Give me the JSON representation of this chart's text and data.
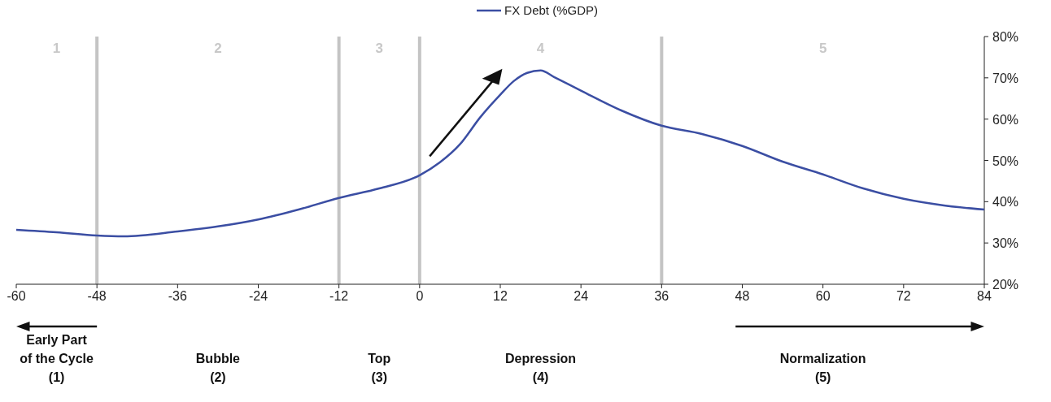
{
  "chart_data": {
    "type": "line",
    "x": [
      -60,
      -54,
      -48,
      -44,
      -36,
      -30,
      -24,
      -18,
      -12,
      -6,
      0,
      3,
      6,
      9,
      12,
      14,
      16,
      18,
      20,
      24,
      30,
      36,
      42,
      48,
      54,
      60,
      66,
      72,
      78,
      84
    ],
    "series": [
      {
        "name": "FX Debt (%GDP)",
        "color": "#3b4ea3",
        "values": [
          33.2,
          32.6,
          31.8,
          31.6,
          32.8,
          34,
          35.7,
          38.1,
          40.9,
          43.2,
          46.4,
          49.5,
          53.9,
          60.4,
          65.9,
          69.2,
          71.2,
          71.8,
          70.2,
          66.9,
          62.1,
          58.4,
          56.4,
          53.5,
          49.7,
          46.6,
          43.2,
          40.7,
          39.1,
          38.1
        ]
      }
    ],
    "xlim": [
      -60,
      84
    ],
    "xticks": [
      -60,
      -48,
      -36,
      -24,
      -12,
      0,
      12,
      24,
      36,
      48,
      60,
      72,
      84
    ],
    "ylim": [
      20,
      80
    ],
    "yticks": [
      {
        "value": 20,
        "label": "20%"
      },
      {
        "value": 30,
        "label": "30%"
      },
      {
        "value": 40,
        "label": "40%"
      },
      {
        "value": 50,
        "label": "50%"
      },
      {
        "value": 60,
        "label": "60%"
      },
      {
        "value": 70,
        "label": "70%"
      },
      {
        "value": 80,
        "label": "80%"
      }
    ],
    "ref_lines": [
      {
        "axis": "x",
        "value": -48,
        "color": "#c4c4c4"
      },
      {
        "axis": "x",
        "value": -12,
        "color": "#c4c4c4"
      },
      {
        "axis": "x",
        "value": 0,
        "color": "#c4c4c4"
      },
      {
        "axis": "x",
        "value": 36,
        "color": "#c4c4c4"
      }
    ],
    "annotations": [
      "1",
      "2",
      "3",
      "4",
      "5",
      "Early Part\nof the Cycle\n(1)",
      "Bubble\n(2)",
      "Top\n(3)",
      "Depression\n(4)",
      "Normalization\n(5)"
    ],
    "legend": "top",
    "grid": false,
    "line_style": "solid",
    "marker": "none"
  }
}
